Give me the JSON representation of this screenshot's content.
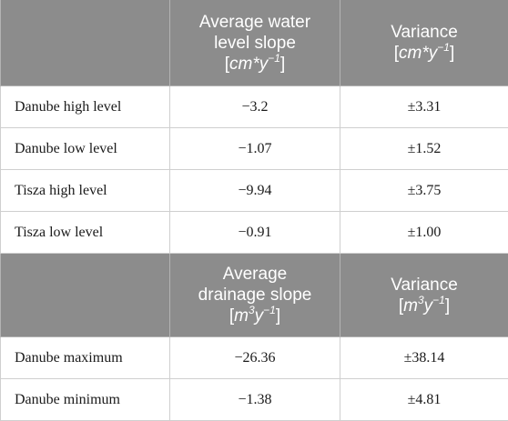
{
  "header1": {
    "col1": "",
    "col2_line1": "Average water",
    "col2_line2": "level slope",
    "col2_unit": "cm*y",
    "col2_exp": "−1",
    "col3_line1": "Variance",
    "col3_unit": "cm*y",
    "col3_exp": "−1"
  },
  "rows1": [
    {
      "name": "Danube high level",
      "slope": "−3.2",
      "variance": "±3.31"
    },
    {
      "name": "Danube low level",
      "slope": "−1.07",
      "variance": "±1.52"
    },
    {
      "name": "Tisza high level",
      "slope": "−9.94",
      "variance": "±3.75"
    },
    {
      "name": "Tisza low level",
      "slope": "−0.91",
      "variance": "±1.00"
    }
  ],
  "header2": {
    "col1": "",
    "col2_line1": "Average",
    "col2_line2": "drainage slope",
    "col2_unit_m": "m",
    "col2_unit_exp3": "3",
    "col2_unit_y": "y",
    "col2_exp": "−1",
    "col3_line1": "Variance",
    "col3_unit_m": "m",
    "col3_unit_exp3": "3",
    "col3_unit_y": "y",
    "col3_exp": "−1"
  },
  "rows2": [
    {
      "name": "Danube maximum",
      "slope": "−26.36",
      "variance": "±38.14"
    },
    {
      "name": "Danube minimum",
      "slope": "−1.38",
      "variance": "±4.81"
    }
  ]
}
